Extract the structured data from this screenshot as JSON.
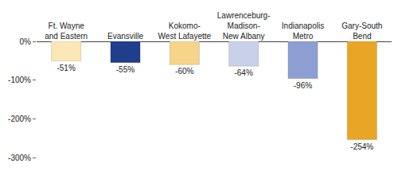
{
  "chart_data": {
    "type": "bar",
    "categories": [
      "Ft. Wayne\nand Eastern",
      "Evansville",
      "Kokomo-\nWest Lafayette",
      "Lawrenceburg-\nMadison-\nNew Albany",
      "Indianapolis\nMetro",
      "Gary-South\nBend"
    ],
    "values": [
      -51,
      -55,
      -60,
      -64,
      -96,
      -254
    ],
    "value_labels": [
      "-51%",
      "-55%",
      "-60%",
      "-64%",
      "-96%",
      "-254%"
    ],
    "colors": [
      "#fbe7b5",
      "#1f3e8c",
      "#f6d48a",
      "#c9d0ea",
      "#8d9fd2",
      "#e9a626"
    ],
    "ylim": [
      -300,
      0
    ],
    "yticks": [
      {
        "value": -300,
        "label": "-300%"
      },
      {
        "value": -200,
        "label": "-200%"
      },
      {
        "value": -100,
        "label": "-100%"
      },
      {
        "value": 0,
        "label": "0%"
      }
    ],
    "grid": false,
    "data_labels": true
  }
}
